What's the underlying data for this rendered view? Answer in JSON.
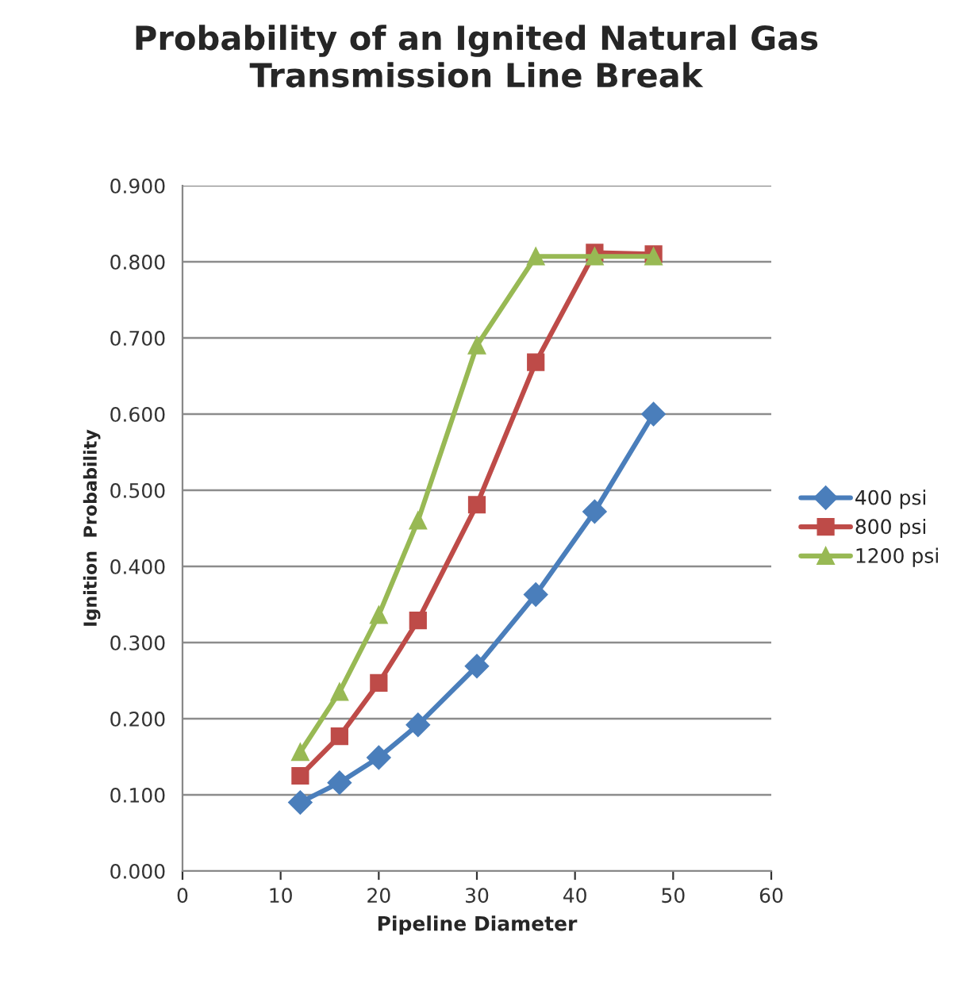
{
  "chart_data": {
    "type": "line",
    "title": "Probability of an Ignited Natural Gas\nTransmission Line Break",
    "xlabel": "Pipeline Diameter",
    "ylabel": "Ignition  Probability",
    "x": [
      12,
      16,
      20,
      24,
      30,
      36,
      42,
      48
    ],
    "series": [
      {
        "name": "400 psi",
        "color": "#4a7ebb",
        "marker": "diamond",
        "values": [
          0.09,
          0.116,
          0.149,
          0.192,
          0.269,
          0.363,
          0.472,
          0.6
        ]
      },
      {
        "name": "800 psi",
        "color": "#be4b48",
        "marker": "square",
        "values": [
          0.125,
          0.177,
          0.247,
          0.329,
          0.481,
          0.668,
          0.812,
          0.81
        ]
      },
      {
        "name": "1200 psi",
        "color": "#98b954",
        "marker": "triangle",
        "values": [
          0.156,
          0.235,
          0.336,
          0.46,
          0.69,
          0.807,
          0.807,
          0.807
        ]
      }
    ],
    "xlim": [
      0,
      60
    ],
    "xticks": [
      0,
      10,
      20,
      30,
      40,
      50,
      60
    ],
    "ylim": [
      0,
      0.9
    ],
    "yticks": [
      {
        "value": 0,
        "label": "0.000"
      },
      {
        "value": 0.1,
        "label": "0.100"
      },
      {
        "value": 0.2,
        "label": "0.200"
      },
      {
        "value": 0.3,
        "label": "0.300"
      },
      {
        "value": 0.4,
        "label": "0.400"
      },
      {
        "value": 0.5,
        "label": "0.500"
      },
      {
        "value": 0.6,
        "label": "0.600"
      },
      {
        "value": 0.7,
        "label": "0.700"
      },
      {
        "value": 0.8,
        "label": "0.800"
      },
      {
        "value": 0.9,
        "label": "0.900"
      }
    ],
    "grid": "y",
    "legend": "right",
    "line_style": "solid"
  }
}
